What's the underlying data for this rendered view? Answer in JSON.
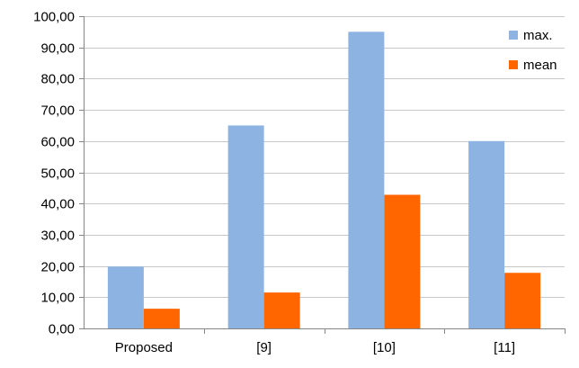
{
  "chart_data": {
    "type": "bar",
    "categories": [
      "Proposed",
      "[9]",
      "[10]",
      "[11]"
    ],
    "series": [
      {
        "name": "max.",
        "values": [
          19.8,
          65.0,
          95.0,
          60.0
        ],
        "color": "#8DB3E2"
      },
      {
        "name": "mean",
        "values": [
          6.3,
          11.5,
          42.8,
          17.8
        ],
        "color": "#FF6600"
      }
    ],
    "ylim": [
      0,
      100
    ],
    "yticks": [
      "0,00",
      "10,00",
      "20,00",
      "30,00",
      "40,00",
      "50,00",
      "60,00",
      "70,00",
      "80,00",
      "90,00",
      "100,00"
    ],
    "grid": true,
    "legend_position": "top-right",
    "title": "",
    "xlabel": "",
    "ylabel": ""
  }
}
